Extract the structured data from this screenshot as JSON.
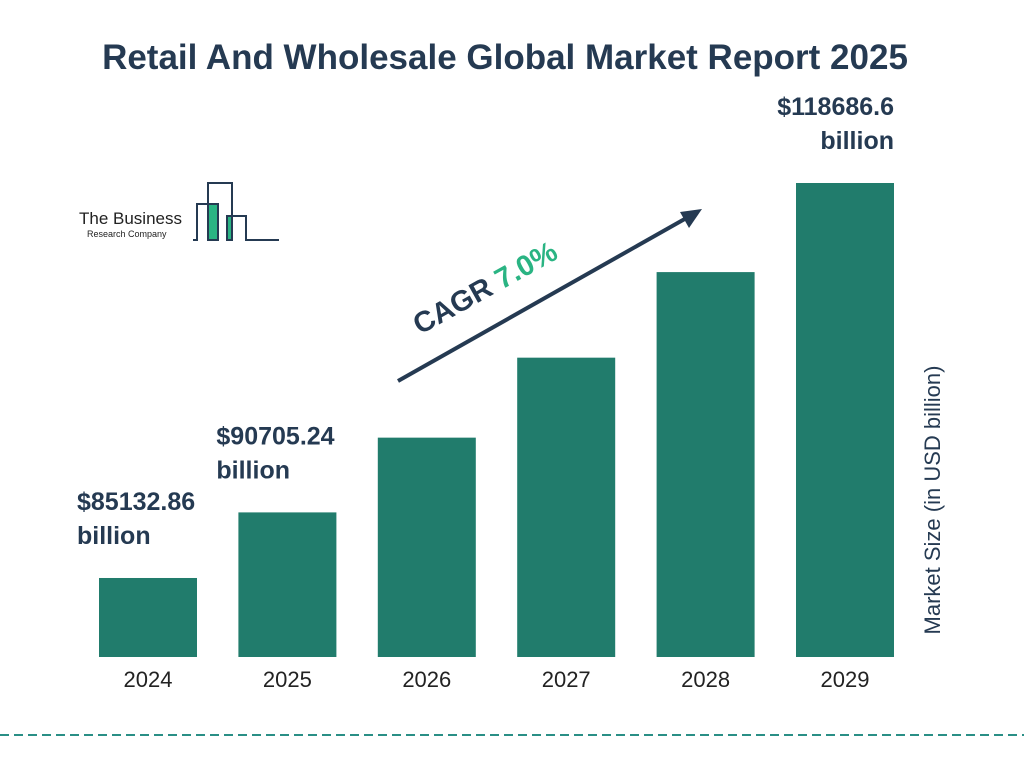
{
  "title": "Retail And Wholesale Global Market Report 2025",
  "logo": {
    "line1": "The Business",
    "line2": "Research Company"
  },
  "cagr": {
    "prefix": "CAGR ",
    "value": "7.0%"
  },
  "colors": {
    "bar": "#217c6c",
    "title": "#253a52",
    "cagr": "#2ab483",
    "dash": "#2a8f86"
  },
  "chart_data": {
    "type": "bar",
    "title": "Retail And Wholesale Global Market Report 2025",
    "categories": [
      "2024",
      "2025",
      "2026",
      "2027",
      "2028",
      "2029"
    ],
    "values": [
      85132.86,
      90705.24,
      97055,
      103849,
      111118,
      118686.6
    ],
    "data_labels": [
      {
        "index": 0,
        "line1": "$85132.86",
        "line2": "billion"
      },
      {
        "index": 1,
        "line1": "$90705.24",
        "line2": "billion"
      },
      {
        "index": 5,
        "line1": "$118686.6",
        "line2": "billion"
      }
    ],
    "ylabel": "Market Size (in USD billion)",
    "xlabel": "",
    "grid": false
  }
}
